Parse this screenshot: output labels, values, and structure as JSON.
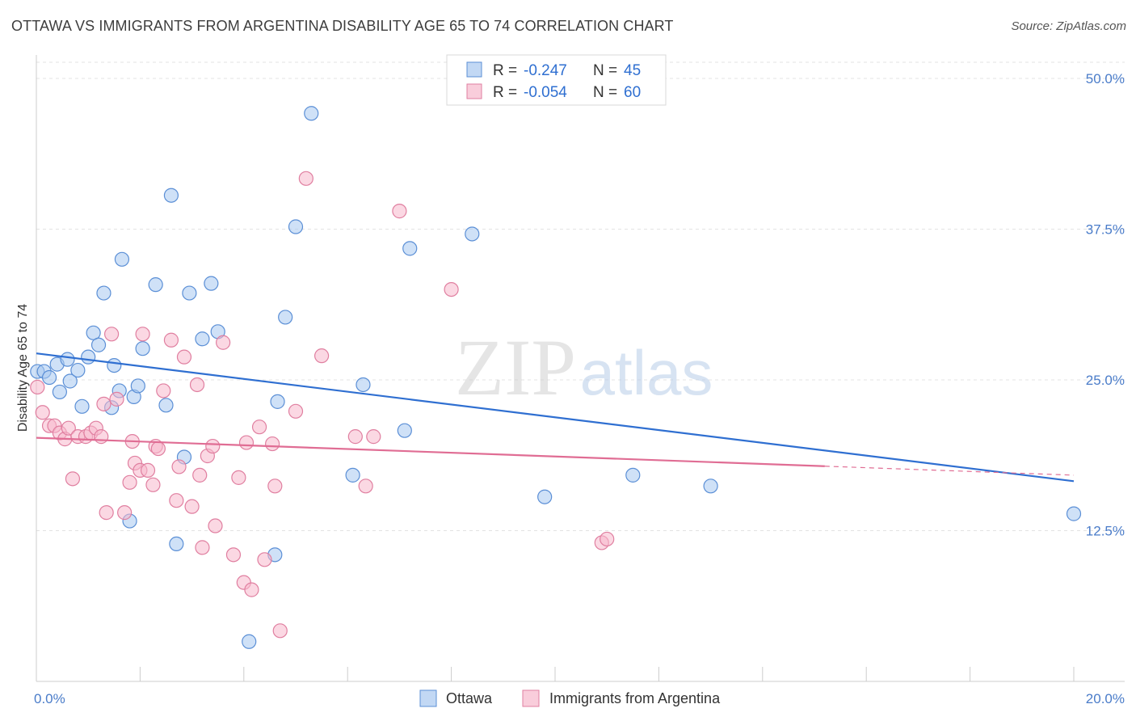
{
  "title": "OTTAWA VS IMMIGRANTS FROM ARGENTINA DISABILITY AGE 65 TO 74 CORRELATION CHART",
  "source": "Source: ZipAtlas.com",
  "watermark": {
    "zip": "ZIP",
    "atlas": "atlas"
  },
  "legend": {
    "rows": [
      {
        "r_label": "R =",
        "r_value": "-0.247",
        "n_label": "N =",
        "n_value": "45",
        "color": "#a8c8f0",
        "stroke": "#5b8fd6"
      },
      {
        "r_label": "R =",
        "r_value": "-0.054",
        "n_label": "N =",
        "n_value": "60",
        "color": "#f7b8cc",
        "stroke": "#e07fa0"
      }
    ]
  },
  "bottom_legend": [
    {
      "label": "Ottawa",
      "color": "#a8c8f0",
      "stroke": "#5b8fd6"
    },
    {
      "label": "Immigrants from Argentina",
      "color": "#f7b8cc",
      "stroke": "#e07fa0"
    }
  ],
  "chart_data": {
    "type": "scatter",
    "title": "OTTAWA VS IMMIGRANTS FROM ARGENTINA DISABILITY AGE 65 TO 74 CORRELATION CHART",
    "xlabel": "",
    "ylabel": "Disability Age 65 to 74",
    "xlim": [
      0,
      20
    ],
    "ylim": [
      0,
      50
    ],
    "x_tick_labels": [
      "0.0%",
      "20.0%"
    ],
    "y_ticks": [
      12.5,
      25.0,
      37.5,
      50.0
    ],
    "y_tick_labels": [
      "12.5%",
      "25.0%",
      "37.5%",
      "50.0%"
    ],
    "grid": true,
    "series": [
      {
        "name": "Ottawa",
        "color": "#a8c8f0",
        "stroke": "#5b8fd6",
        "line_color": "#2f6fd1",
        "trend": {
          "x0": 0,
          "y0": 27.2,
          "x1": 20,
          "y1": 16.6,
          "dash_from": null
        },
        "points": [
          [
            0.02,
            25.7
          ],
          [
            0.15,
            25.7
          ],
          [
            0.25,
            25.2
          ],
          [
            0.4,
            26.3
          ],
          [
            0.45,
            24.0
          ],
          [
            0.6,
            26.7
          ],
          [
            0.65,
            24.9
          ],
          [
            0.8,
            25.8
          ],
          [
            0.88,
            22.8
          ],
          [
            1.0,
            26.9
          ],
          [
            1.1,
            28.9
          ],
          [
            1.2,
            27.9
          ],
          [
            1.3,
            32.2
          ],
          [
            1.45,
            22.7
          ],
          [
            1.5,
            26.2
          ],
          [
            1.6,
            24.1
          ],
          [
            1.65,
            35.0
          ],
          [
            1.8,
            13.3
          ],
          [
            1.88,
            23.6
          ],
          [
            1.96,
            24.5
          ],
          [
            2.05,
            27.6
          ],
          [
            2.3,
            32.9
          ],
          [
            2.5,
            22.9
          ],
          [
            2.6,
            40.3
          ],
          [
            2.7,
            11.4
          ],
          [
            2.85,
            18.6
          ],
          [
            2.95,
            32.2
          ],
          [
            3.2,
            28.4
          ],
          [
            3.37,
            33.0
          ],
          [
            3.5,
            29.0
          ],
          [
            4.1,
            3.3
          ],
          [
            4.6,
            10.5
          ],
          [
            4.65,
            23.2
          ],
          [
            4.8,
            30.2
          ],
          [
            5.0,
            37.7
          ],
          [
            5.3,
            47.1
          ],
          [
            6.1,
            17.1
          ],
          [
            6.3,
            24.6
          ],
          [
            7.1,
            20.8
          ],
          [
            7.2,
            35.9
          ],
          [
            8.4,
            37.1
          ],
          [
            9.8,
            15.3
          ],
          [
            11.5,
            17.1
          ],
          [
            13.0,
            16.2
          ],
          [
            20.0,
            13.9
          ]
        ]
      },
      {
        "name": "Immigrants from Argentina",
        "color": "#f7b8cc",
        "stroke": "#e07fa0",
        "line_color": "#e06d94",
        "trend": {
          "x0": 0,
          "y0": 20.2,
          "x1": 20,
          "y1": 17.1,
          "dash_from": 15.2
        },
        "points": [
          [
            0.02,
            24.4
          ],
          [
            0.12,
            22.3
          ],
          [
            0.25,
            21.2
          ],
          [
            0.35,
            21.2
          ],
          [
            0.45,
            20.6
          ],
          [
            0.55,
            20.1
          ],
          [
            0.62,
            21.0
          ],
          [
            0.7,
            16.8
          ],
          [
            0.8,
            20.3
          ],
          [
            0.95,
            20.3
          ],
          [
            1.05,
            20.6
          ],
          [
            1.15,
            21.0
          ],
          [
            1.25,
            20.3
          ],
          [
            1.3,
            23.0
          ],
          [
            1.35,
            14.0
          ],
          [
            1.45,
            28.8
          ],
          [
            1.55,
            23.4
          ],
          [
            1.7,
            14.0
          ],
          [
            1.8,
            16.5
          ],
          [
            1.85,
            19.9
          ],
          [
            1.9,
            18.1
          ],
          [
            2.0,
            17.5
          ],
          [
            2.05,
            28.8
          ],
          [
            2.15,
            17.5
          ],
          [
            2.25,
            16.3
          ],
          [
            2.3,
            19.5
          ],
          [
            2.35,
            19.3
          ],
          [
            2.45,
            24.1
          ],
          [
            2.6,
            28.3
          ],
          [
            2.7,
            15.0
          ],
          [
            2.75,
            17.8
          ],
          [
            2.85,
            26.9
          ],
          [
            3.0,
            14.5
          ],
          [
            3.1,
            24.6
          ],
          [
            3.15,
            17.1
          ],
          [
            3.2,
            11.1
          ],
          [
            3.3,
            18.7
          ],
          [
            3.4,
            19.5
          ],
          [
            3.45,
            12.9
          ],
          [
            3.6,
            28.1
          ],
          [
            3.8,
            10.5
          ],
          [
            3.9,
            16.9
          ],
          [
            4.0,
            8.2
          ],
          [
            4.05,
            19.8
          ],
          [
            4.15,
            7.6
          ],
          [
            4.3,
            21.1
          ],
          [
            4.4,
            10.1
          ],
          [
            4.55,
            19.7
          ],
          [
            4.6,
            16.2
          ],
          [
            4.7,
            4.2
          ],
          [
            5.0,
            22.4
          ],
          [
            5.2,
            41.7
          ],
          [
            5.5,
            27.0
          ],
          [
            6.15,
            20.3
          ],
          [
            6.35,
            16.2
          ],
          [
            6.5,
            20.3
          ],
          [
            7.0,
            39.0
          ],
          [
            8.0,
            32.5
          ],
          [
            10.9,
            11.5
          ],
          [
            11.0,
            11.8
          ]
        ]
      }
    ]
  }
}
